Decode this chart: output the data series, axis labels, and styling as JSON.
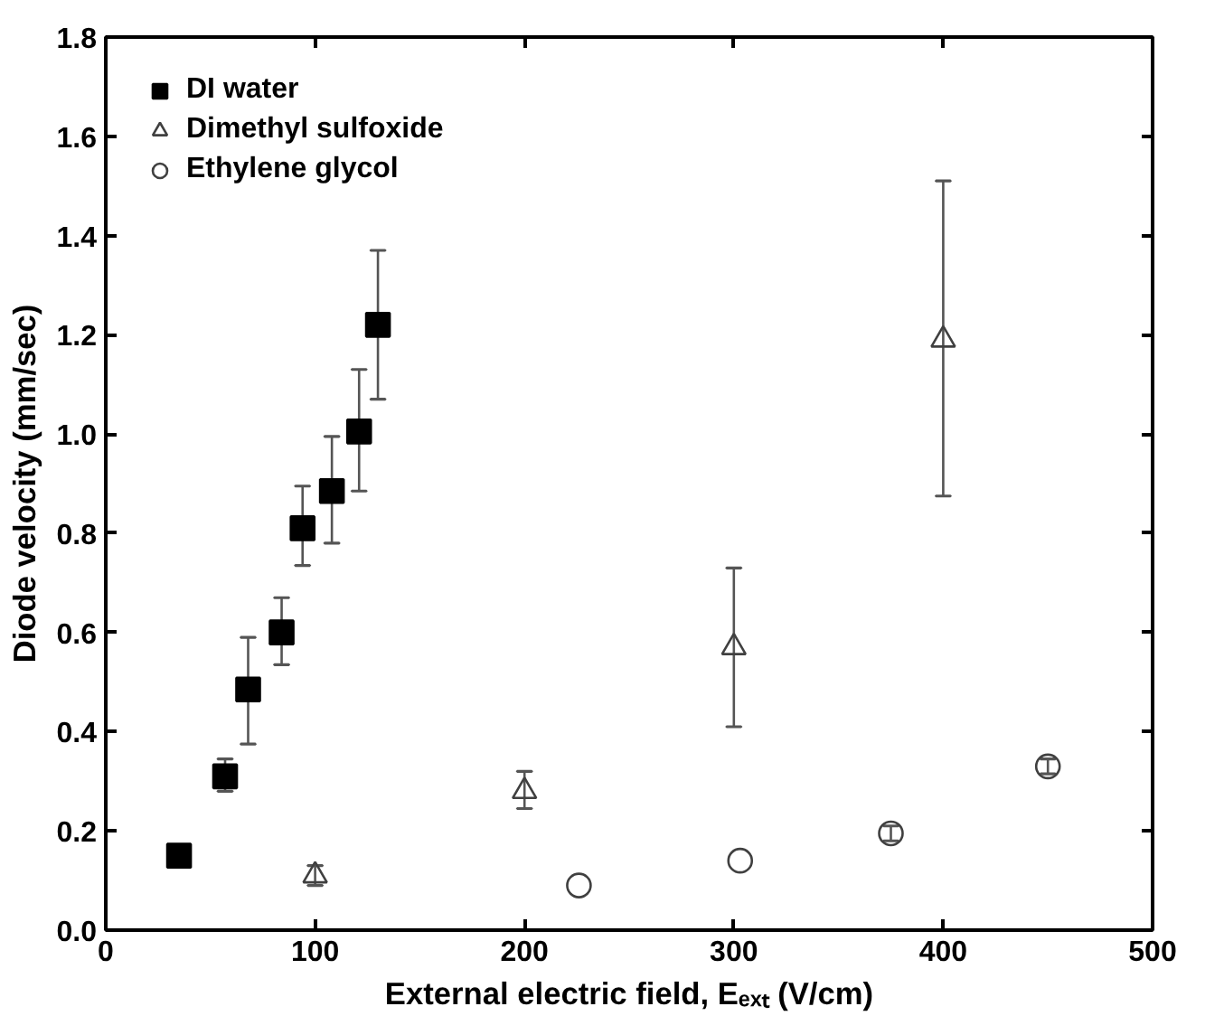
{
  "chart_data": {
    "type": "scatter",
    "xlabel": "External electric field, Eₑₓₜ (V/cm)",
    "ylabel": "Diode velocity (mm/sec)",
    "xlim": [
      0,
      500
    ],
    "xticks": [
      0,
      100,
      200,
      300,
      400,
      500
    ],
    "ylim": [
      0,
      1.8
    ],
    "yticks": [
      {
        "value": 0,
        "label": "0.0"
      },
      0.2,
      0.4,
      0.6,
      0.8,
      {
        "value": 1,
        "label": "1.0"
      },
      1.2,
      1.4,
      1.6,
      1.8
    ],
    "grid": false,
    "legend": "top left",
    "series": [
      {
        "name": "DI water",
        "color": "#000000",
        "marker": "square",
        "x": [
          35,
          57,
          68,
          84,
          94,
          108,
          121,
          130
        ],
        "values": [
          0.15,
          0.31,
          0.485,
          0.6,
          0.81,
          0.885,
          1.005,
          1.22
        ],
        "errors": [
          null,
          [
            0.28,
            0.345
          ],
          [
            0.375,
            0.59
          ],
          [
            0.535,
            0.67
          ],
          [
            0.735,
            0.895
          ],
          [
            0.78,
            0.995
          ],
          [
            0.885,
            1.13
          ],
          [
            1.07,
            1.37
          ]
        ]
      },
      {
        "name": "Dimethyl sulfoxide",
        "color": "#404040",
        "marker": "triangle",
        "x": [
          100,
          200,
          300,
          400
        ],
        "values": [
          0.11,
          0.28,
          0.57,
          1.19
        ],
        "errors": [
          [
            0.09,
            0.13
          ],
          [
            0.245,
            0.32
          ],
          [
            0.41,
            0.73
          ],
          [
            0.875,
            1.51
          ]
        ]
      },
      {
        "name": "Ethylene glycol",
        "color": "#404040",
        "marker": "circle",
        "x": [
          226,
          303,
          375,
          450
        ],
        "values": [
          0.09,
          0.14,
          0.195,
          0.33
        ],
        "errors": [
          null,
          null,
          [
            0.18,
            0.21
          ],
          [
            0.315,
            0.345
          ]
        ]
      }
    ]
  }
}
